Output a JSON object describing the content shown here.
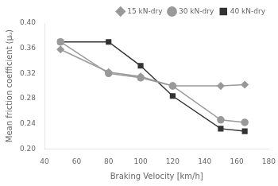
{
  "chart_data": {
    "type": "line",
    "x_label": "Braking Velocity [km/h]",
    "y_label": "Mean friction coefficient (μᵤ)",
    "x": [
      50,
      80,
      100,
      120,
      150,
      165
    ],
    "series": [
      {
        "name": "15 kN-dry",
        "color": "#999999",
        "marker": "diamond",
        "line_style": "solid",
        "values": [
          0.358,
          0.322,
          0.315,
          0.3,
          0.3,
          0.302
        ]
      },
      {
        "name": "30 kN-dry",
        "color": "#999999",
        "marker": "circle",
        "line_style": "solid",
        "values": [
          0.37,
          0.32,
          0.313,
          0.3,
          0.246,
          0.242
        ]
      },
      {
        "name": "40 kN-dry",
        "color": "#333333",
        "marker": "square",
        "line_style": "solid",
        "values": [
          0.37,
          0.37,
          0.332,
          0.284,
          0.232,
          0.228
        ]
      }
    ],
    "xlim": [
      40,
      180
    ],
    "ylim": [
      0.2,
      0.4
    ],
    "xticks": [
      40,
      60,
      80,
      100,
      120,
      140,
      160,
      180
    ],
    "yticks": [
      {
        "value": 0.2,
        "label": "0.20"
      },
      0.24,
      0.28,
      0.32,
      0.36,
      {
        "value": 0.4,
        "label": "0.40"
      }
    ],
    "grid": false,
    "legend": "upper right"
  }
}
